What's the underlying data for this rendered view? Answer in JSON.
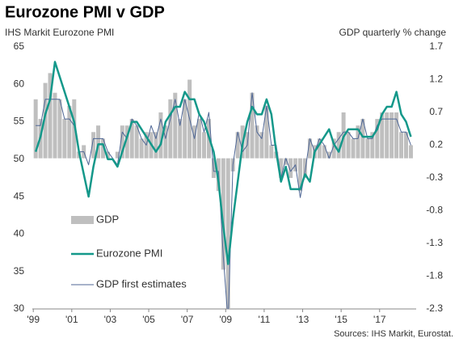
{
  "chart_data": {
    "type": "combo",
    "title": "Eurozone PMI v GDP",
    "y_label": "IHS Markit Eurozone PMI",
    "y2_label": "GDP quarterly % change",
    "source": "Sources: IHS Markit, Eurostat.",
    "x": [
      1999.125,
      1999.375,
      1999.625,
      1999.875,
      2000.125,
      2000.375,
      2000.625,
      2000.875,
      2001.125,
      2001.375,
      2001.625,
      2001.875,
      2002.125,
      2002.375,
      2002.625,
      2002.875,
      2003.125,
      2003.375,
      2003.625,
      2003.875,
      2004.125,
      2004.375,
      2004.625,
      2004.875,
      2005.125,
      2005.375,
      2005.625,
      2005.875,
      2006.125,
      2006.375,
      2006.625,
      2006.875,
      2007.125,
      2007.375,
      2007.625,
      2007.875,
      2008.125,
      2008.375,
      2008.625,
      2008.875,
      2009.125,
      2009.375,
      2009.625,
      2009.875,
      2010.125,
      2010.375,
      2010.625,
      2010.875,
      2011.125,
      2011.375,
      2011.625,
      2011.875,
      2012.125,
      2012.375,
      2012.625,
      2012.875,
      2013.125,
      2013.375,
      2013.625,
      2013.875,
      2014.125,
      2014.375,
      2014.625,
      2014.875,
      2015.125,
      2015.375,
      2015.625,
      2015.875,
      2016.125,
      2016.375,
      2016.625,
      2016.875,
      2017.125,
      2017.375,
      2017.625,
      2017.875,
      2018.125,
      2018.375,
      2018.625
    ],
    "series": [
      {
        "name": "GDP",
        "type": "bar",
        "axis": "y2",
        "color": "#bfbfbf",
        "values": [
          0.9,
          0.6,
          1.15,
          1.3,
          1.0,
          0.9,
          0.6,
          0.8,
          0.9,
          0.1,
          0.2,
          0.0,
          0.4,
          0.5,
          0.3,
          0.1,
          0.0,
          0.1,
          0.5,
          0.5,
          0.6,
          0.5,
          0.3,
          0.4,
          0.4,
          0.4,
          0.7,
          0.5,
          0.9,
          1.0,
          0.6,
          0.9,
          1.2,
          0.5,
          0.6,
          0.4,
          0.6,
          -0.3,
          -0.5,
          -1.7,
          -2.3,
          -0.2,
          0.4,
          0.5,
          0.4,
          1.0,
          0.5,
          0.4,
          0.8,
          0.2,
          0.1,
          -0.3,
          -0.1,
          -0.3,
          -0.2,
          -0.5,
          -0.3,
          0.3,
          0.2,
          0.3,
          0.2,
          0.1,
          0.3,
          0.4,
          0.7,
          0.4,
          0.3,
          0.5,
          0.6,
          0.3,
          0.4,
          0.6,
          0.7,
          0.7,
          0.7,
          0.7,
          0.4,
          0.4,
          0.2
        ]
      },
      {
        "name": "Eurozone PMI",
        "type": "line",
        "color": "#14988a",
        "values": [
          51,
          53,
          56,
          58,
          63,
          61,
          59,
          57,
          55,
          51,
          48,
          45,
          49,
          52,
          52,
          50,
          50,
          49,
          51,
          53,
          55,
          55,
          54,
          53,
          52,
          51,
          52,
          55,
          56,
          57,
          57,
          59,
          58,
          58,
          56,
          55,
          53,
          51,
          47,
          41,
          36,
          42,
          47,
          52,
          55,
          57,
          56,
          56,
          58,
          56,
          51,
          47,
          49,
          46,
          46,
          46,
          48,
          47,
          51,
          52,
          53,
          54,
          52,
          51,
          53,
          54,
          54,
          54,
          53,
          53,
          53,
          54,
          56,
          57,
          57,
          59,
          56,
          55,
          53
        ]
      },
      {
        "name": "GDP first estimates",
        "type": "line",
        "axis": "y2",
        "color": "#4f6796",
        "values": [
          0.5,
          0.5,
          0.9,
          0.9,
          0.9,
          0.9,
          0.6,
          0.6,
          0.5,
          0.1,
          0.1,
          -0.1,
          0.3,
          0.3,
          0.3,
          0.1,
          0.0,
          -0.1,
          0.4,
          0.3,
          0.6,
          0.5,
          0.3,
          0.2,
          0.5,
          0.3,
          0.6,
          0.3,
          0.6,
          0.9,
          0.5,
          0.9,
          0.6,
          0.3,
          0.7,
          0.4,
          0.7,
          -0.2,
          -0.2,
          -1.5,
          -2.5,
          -0.1,
          0.4,
          0.1,
          0.2,
          1.0,
          0.4,
          0.3,
          0.8,
          0.2,
          0.2,
          -0.3,
          0.0,
          -0.2,
          -0.1,
          -0.6,
          -0.2,
          0.3,
          0.1,
          0.3,
          0.2,
          0.0,
          0.2,
          0.3,
          0.4,
          0.4,
          0.3,
          0.3,
          0.6,
          0.3,
          0.3,
          0.5,
          0.6,
          0.6,
          0.6,
          0.6,
          0.4,
          0.4,
          0.2
        ]
      }
    ],
    "xlim": [
      1998.95,
      2018.9
    ],
    "xticks": [
      {
        "value": 1999,
        "label": "'99"
      },
      {
        "value": 2001,
        "label": "'01"
      },
      {
        "value": 2003,
        "label": "'03"
      },
      {
        "value": 2005,
        "label": "'05"
      },
      {
        "value": 2007,
        "label": "'07"
      },
      {
        "value": 2009,
        "label": "'09"
      },
      {
        "value": 2011,
        "label": "'11"
      },
      {
        "value": 2013,
        "label": "'13"
      },
      {
        "value": 2015,
        "label": "'15"
      },
      {
        "value": 2017,
        "label": "'17"
      }
    ],
    "ylim": [
      30,
      65
    ],
    "yticks": [
      30,
      35,
      40,
      45,
      50,
      55,
      60,
      65
    ],
    "y2lim": [
      -2.3,
      1.7
    ],
    "y2ticks": [
      -2.3,
      -1.8,
      -1.3,
      -0.8,
      -0.3,
      0.2,
      0.7,
      1.2,
      1.7
    ]
  }
}
